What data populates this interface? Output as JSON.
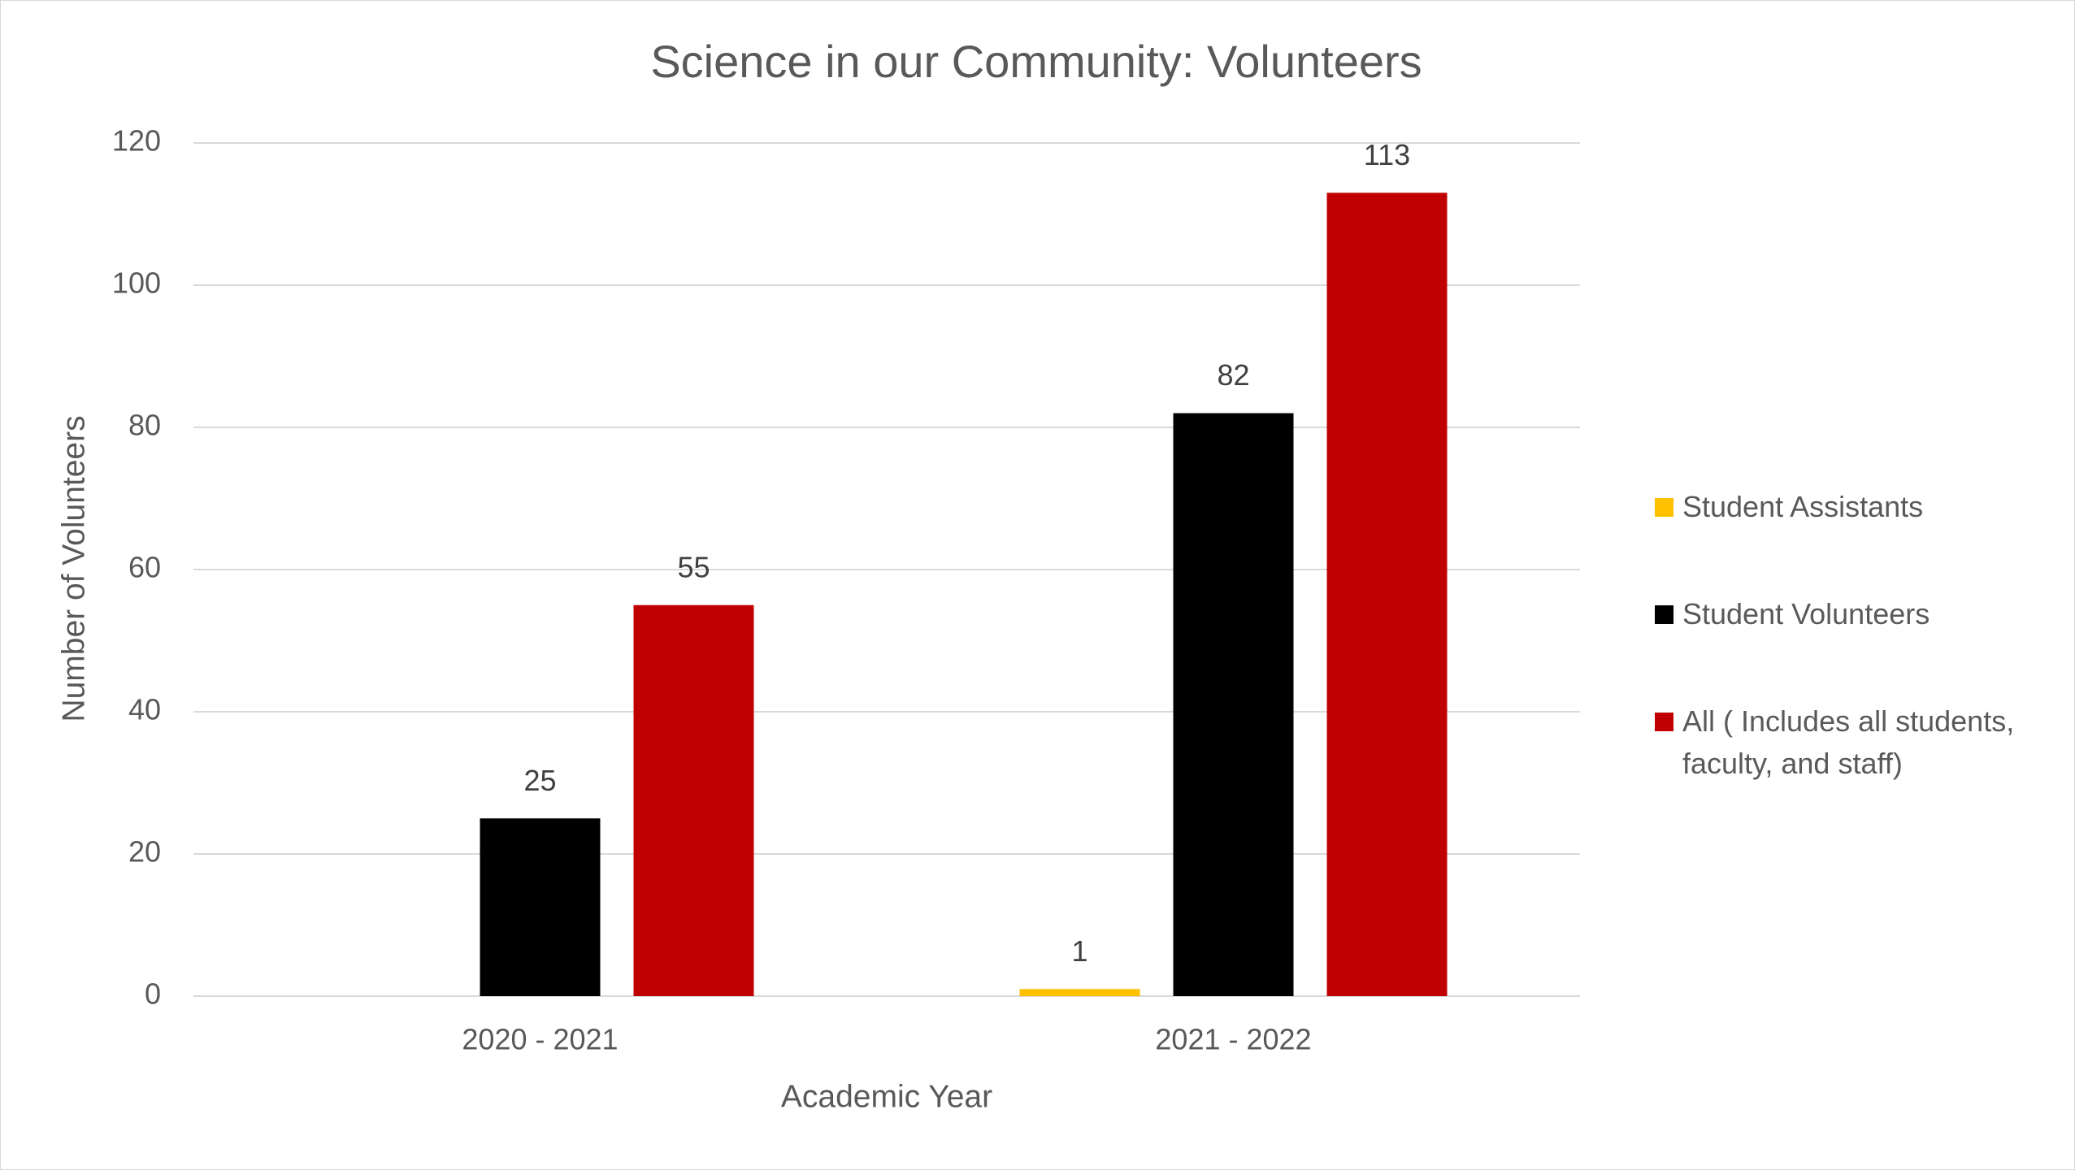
{
  "chart_data": {
    "type": "bar",
    "title": "Science in our Community: Volunteers",
    "x_label": "Academic Year",
    "y_label": "Number of Volunteers",
    "categories": [
      "2020 - 2021",
      "2021 - 2022"
    ],
    "series": [
      {
        "name": "Student Assistants",
        "color": "#ffc000",
        "values": [
          null,
          1
        ]
      },
      {
        "name": "Student Volunteers",
        "color": "#000000",
        "values": [
          25,
          82
        ]
      },
      {
        "name": "All ( Includes all students, faculty, and staff)",
        "color": "#c00000",
        "values": [
          55,
          113
        ]
      }
    ],
    "ylim": [
      0,
      120
    ],
    "yticks": [
      0,
      20,
      40,
      60,
      80,
      100,
      120
    ],
    "grid": true,
    "legend": "right"
  }
}
